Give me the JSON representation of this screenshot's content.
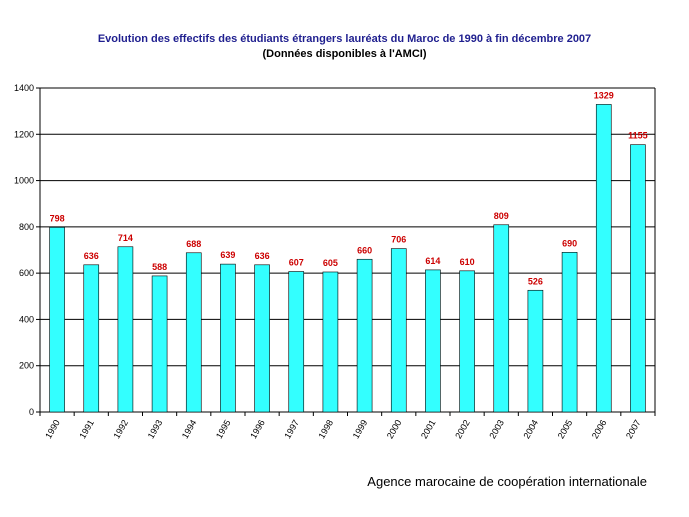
{
  "chart_data": {
    "type": "bar",
    "title": "Evolution des effectifs des étudiants étrangers lauréats du Maroc de 1990 à fin décembre 2007",
    "subtitle": "(Données disponibles à l'AMCI)",
    "categories": [
      "1990",
      "1991",
      "1992",
      "1993",
      "1994",
      "1995",
      "1996",
      "1997",
      "1998",
      "1999",
      "2000",
      "2001",
      "2002",
      "2003",
      "2004",
      "2005",
      "2006",
      "2007"
    ],
    "values": [
      798,
      636,
      714,
      588,
      688,
      639,
      636,
      607,
      605,
      660,
      706,
      614,
      610,
      809,
      526,
      690,
      1329,
      1155
    ],
    "ylim": [
      0,
      1400
    ],
    "yticks": [
      0,
      200,
      400,
      600,
      800,
      1000,
      1200,
      1400
    ],
    "xlabel": "",
    "ylabel": "",
    "grid": true,
    "legend": "none",
    "colors": {
      "bar_fill": "#33ffff",
      "bar_stroke": "#000000",
      "data_label": "#cc0000",
      "title": "#1f1f8f"
    }
  },
  "footer": {
    "source": "Agence marocaine de coopération internationale"
  }
}
